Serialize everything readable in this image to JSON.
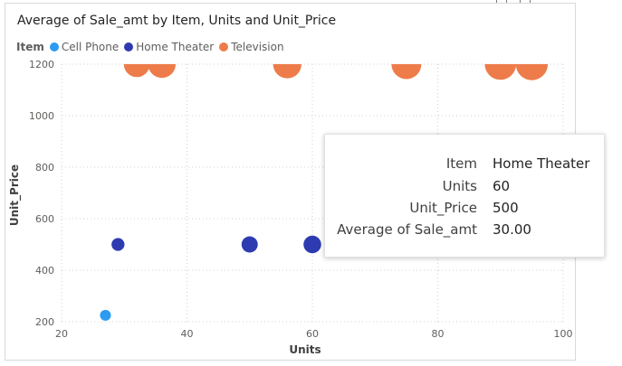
{
  "chart_data": {
    "type": "scatter",
    "title": "Average of Sale_amt by Item, Units and Unit_Price",
    "xlabel": "Units",
    "ylabel": "Unit_Price",
    "xlim": [
      20,
      100
    ],
    "ylim": [
      200,
      1200
    ],
    "x_ticks": [
      "20",
      "40",
      "60",
      "80",
      "100"
    ],
    "y_ticks": [
      "200",
      "400",
      "600",
      "800",
      "1000",
      "1200"
    ],
    "grid": true,
    "legend": {
      "title": "Item",
      "placement": "top-left",
      "entries": [
        "Cell Phone",
        "Home Theater",
        "Television"
      ]
    },
    "series": [
      {
        "name": "Cell Phone",
        "color": "#2b9cf2",
        "points": [
          {
            "x": 27,
            "y": 225,
            "size": 1
          }
        ]
      },
      {
        "name": "Home Theater",
        "color": "#2e3bb0",
        "points": [
          {
            "x": 29,
            "y": 500,
            "size": 1.4
          },
          {
            "x": 50,
            "y": 500,
            "size": 2.2
          },
          {
            "x": 60,
            "y": 500,
            "size": 2.6
          }
        ]
      },
      {
        "name": "Television",
        "color": "#ed7c4a",
        "points": [
          {
            "x": 32,
            "y": 1200,
            "size": 3
          },
          {
            "x": 36,
            "y": 1200,
            "size": 3.4
          },
          {
            "x": 56,
            "y": 1200,
            "size": 3.6
          },
          {
            "x": 75,
            "y": 1200,
            "size": 4
          },
          {
            "x": 90,
            "y": 1200,
            "size": 4.4
          },
          {
            "x": 95,
            "y": 1200,
            "size": 4.6
          }
        ]
      }
    ]
  },
  "tooltip": {
    "rows": [
      {
        "label": "Item",
        "value": "Home Theater"
      },
      {
        "label": "Units",
        "value": "60"
      },
      {
        "label": "Unit_Price",
        "value": "500"
      },
      {
        "label": "Average of Sale_amt",
        "value": "30.00"
      }
    ]
  }
}
